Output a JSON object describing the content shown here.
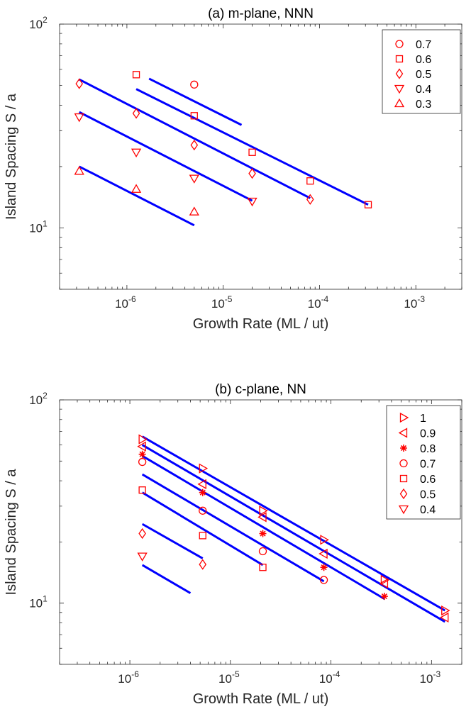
{
  "chart_data": [
    {
      "type": "scatter",
      "title": "(a) m-plane, NNN",
      "xlabel": "Growth Rate (ML / ut)",
      "ylabel": "Island Spacing S / a",
      "xscale": "log",
      "yscale": "log",
      "xlim": [
        2e-07,
        0.003
      ],
      "ylim": [
        5,
        100
      ],
      "xticks": [
        {
          "value": 1e-06,
          "base": "10",
          "exp": "-6"
        },
        {
          "value": 1e-05,
          "base": "10",
          "exp": "-5"
        },
        {
          "value": 0.0001,
          "base": "10",
          "exp": "-4"
        },
        {
          "value": 0.001,
          "base": "10",
          "exp": "-3"
        }
      ],
      "yticks": [
        {
          "value": 10,
          "base": "10",
          "exp": "1"
        },
        {
          "value": 100,
          "base": "10",
          "exp": "2"
        }
      ],
      "marker_color": "#ff0000",
      "line_color": "#0000ff",
      "legend_position": "top-right",
      "series": [
        {
          "name": "0.7",
          "marker": "circle",
          "points": [
            [
              5e-06,
              50.5
            ]
          ],
          "fit": [
            [
              1.7e-06,
              54
            ],
            [
              1.55e-05,
              32
            ]
          ]
        },
        {
          "name": "0.6",
          "marker": "square",
          "points": [
            [
              1.25e-06,
              56.5
            ],
            [
              5e-06,
              35.5
            ],
            [
              2e-05,
              23.5
            ],
            [
              8e-05,
              17
            ],
            [
              0.00032,
              13
            ]
          ],
          "fit": [
            [
              1.25e-06,
              48
            ],
            [
              0.00032,
              13
            ]
          ]
        },
        {
          "name": "0.5",
          "marker": "diamond",
          "points": [
            [
              3.2e-07,
              51
            ],
            [
              1.25e-06,
              36.5
            ],
            [
              5e-06,
              25.5
            ],
            [
              2e-05,
              18.5
            ],
            [
              8e-05,
              13.8
            ]
          ],
          "fit": [
            [
              3.2e-07,
              53.5
            ],
            [
              8e-05,
              14
            ]
          ]
        },
        {
          "name": "0.4",
          "marker": "triangle-down",
          "points": [
            [
              3.2e-07,
              35
            ],
            [
              1.25e-06,
              23.5
            ],
            [
              5e-06,
              17.5
            ],
            [
              2e-05,
              13.5
            ]
          ],
          "fit": [
            [
              3.2e-07,
              37
            ],
            [
              2e-05,
              13.6
            ]
          ]
        },
        {
          "name": "0.3",
          "marker": "triangle-up",
          "points": [
            [
              3.2e-07,
              19
            ],
            [
              1.25e-06,
              15.5
            ],
            [
              5e-06,
              12
            ]
          ],
          "fit": [
            [
              3.2e-07,
              20
            ],
            [
              5e-06,
              10.3
            ]
          ]
        }
      ]
    },
    {
      "type": "scatter",
      "title": "(b) c-plane, NN",
      "xlabel": "Growth Rate (ML / ut)",
      "ylabel": "Island Spacing S / a",
      "xscale": "log",
      "yscale": "log",
      "xlim": [
        2e-07,
        0.002
      ],
      "ylim": [
        5,
        100
      ],
      "xticks": [
        {
          "value": 1e-06,
          "base": "10",
          "exp": "-6"
        },
        {
          "value": 1e-05,
          "base": "10",
          "exp": "-5"
        },
        {
          "value": 0.0001,
          "base": "10",
          "exp": "-4"
        },
        {
          "value": 0.001,
          "base": "10",
          "exp": "-3"
        }
      ],
      "yticks": [
        {
          "value": 10,
          "base": "10",
          "exp": "1"
        },
        {
          "value": 100,
          "base": "10",
          "exp": "2"
        }
      ],
      "marker_color": "#ff0000",
      "line_color": "#0000ff",
      "legend_position": "top-right",
      "series": [
        {
          "name": "1",
          "marker": "triangle-right",
          "points": [
            [
              1.33e-06,
              64
            ],
            [
              5.3e-06,
              46
            ],
            [
              2.1e-05,
              28.5
            ],
            [
              8.5e-05,
              20.5
            ],
            [
              0.00034,
              13
            ],
            [
              0.00136,
              9.2
            ]
          ],
          "fit": [
            [
              1.33e-06,
              66
            ],
            [
              0.00136,
              9.2
            ]
          ]
        },
        {
          "name": "0.9",
          "marker": "triangle-left",
          "points": [
            [
              1.33e-06,
              59
            ],
            [
              5.3e-06,
              38.5
            ],
            [
              2.1e-05,
              26.5
            ],
            [
              8.5e-05,
              17.5
            ],
            [
              0.00034,
              12.5
            ],
            [
              0.00136,
              8.5
            ]
          ],
          "fit": [
            [
              1.33e-06,
              60
            ],
            [
              0.00136,
              8.1
            ]
          ]
        },
        {
          "name": "0.8",
          "marker": "asterisk",
          "points": [
            [
              1.33e-06,
              54
            ],
            [
              5.3e-06,
              35
            ],
            [
              2.1e-05,
              22
            ],
            [
              8.5e-05,
              15
            ],
            [
              0.00034,
              10.8
            ]
          ],
          "fit": [
            [
              1.33e-06,
              53
            ],
            [
              0.00034,
              10.5
            ]
          ]
        },
        {
          "name": "0.7",
          "marker": "circle",
          "points": [
            [
              1.33e-06,
              49.5
            ],
            [
              5.3e-06,
              28.5
            ],
            [
              2.1e-05,
              18
            ],
            [
              8.5e-05,
              13
            ]
          ],
          "fit": [
            [
              1.33e-06,
              43
            ],
            [
              8.5e-05,
              12.8
            ]
          ]
        },
        {
          "name": "0.6",
          "marker": "square",
          "points": [
            [
              1.33e-06,
              36
            ],
            [
              5.3e-06,
              21.5
            ],
            [
              2.1e-05,
              15
            ]
          ],
          "fit": [
            [
              1.33e-06,
              35
            ],
            [
              2.1e-05,
              15.4
            ]
          ]
        },
        {
          "name": "0.5",
          "marker": "diamond",
          "points": [
            [
              1.33e-06,
              22
            ],
            [
              5.3e-06,
              15.5
            ]
          ],
          "fit": [
            [
              1.33e-06,
              24.5
            ],
            [
              5.3e-06,
              16.6
            ]
          ]
        },
        {
          "name": "0.4",
          "marker": "triangle-down",
          "points": [
            [
              1.33e-06,
              17
            ]
          ],
          "fit": [
            [
              1.33e-06,
              15.4
            ],
            [
              4e-06,
              11.2
            ]
          ]
        }
      ]
    }
  ]
}
